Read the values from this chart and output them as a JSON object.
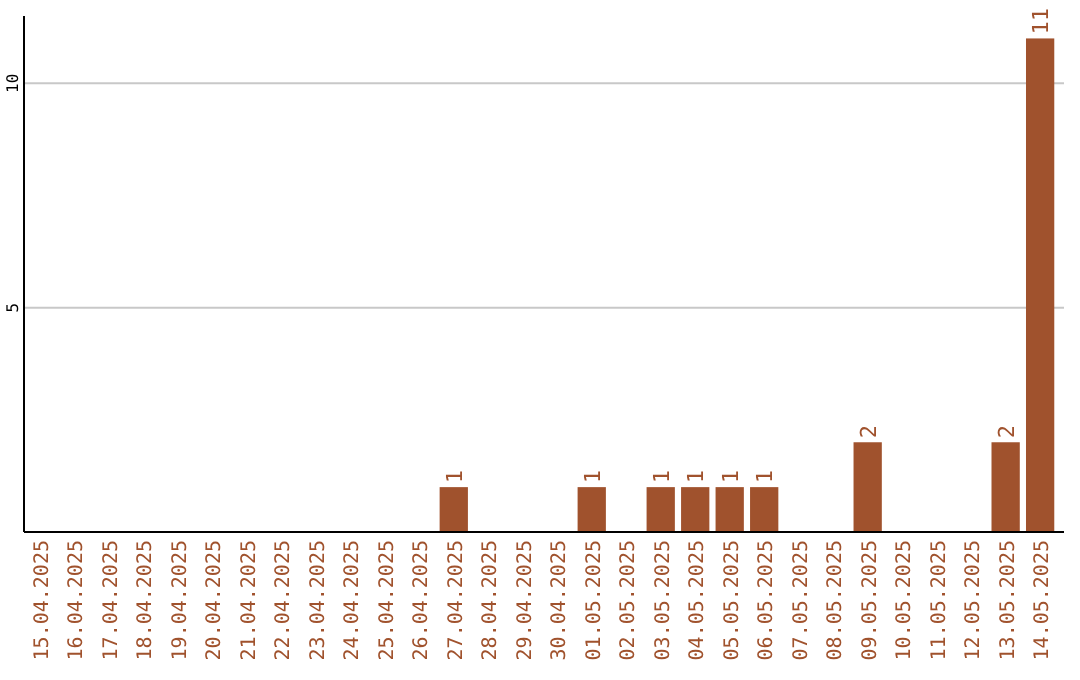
{
  "chart_data": {
    "type": "bar",
    "categories": [
      "15.04.2025",
      "16.04.2025",
      "17.04.2025",
      "18.04.2025",
      "19.04.2025",
      "20.04.2025",
      "21.04.2025",
      "22.04.2025",
      "23.04.2025",
      "24.04.2025",
      "25.04.2025",
      "26.04.2025",
      "27.04.2025",
      "28.04.2025",
      "29.04.2025",
      "30.04.2025",
      "01.05.2025",
      "02.05.2025",
      "03.05.2025",
      "04.05.2025",
      "05.05.2025",
      "06.05.2025",
      "07.05.2025",
      "08.05.2025",
      "09.05.2025",
      "10.05.2025",
      "11.05.2025",
      "12.05.2025",
      "13.05.2025",
      "14.05.2025"
    ],
    "values": [
      0,
      0,
      0,
      0,
      0,
      0,
      0,
      0,
      0,
      0,
      0,
      0,
      1,
      0,
      0,
      0,
      1,
      0,
      1,
      1,
      1,
      1,
      0,
      0,
      2,
      0,
      0,
      0,
      2,
      11
    ],
    "value_labels": [
      null,
      null,
      null,
      null,
      null,
      null,
      null,
      null,
      null,
      null,
      null,
      null,
      "1",
      null,
      null,
      null,
      "1",
      null,
      "1",
      "1",
      "1",
      "1",
      null,
      null,
      "2",
      null,
      null,
      null,
      "2",
      "11"
    ],
    "color": "#a0522d",
    "ylim": [
      0,
      11.5
    ],
    "yticks": [
      5,
      10
    ],
    "grid": "y"
  }
}
